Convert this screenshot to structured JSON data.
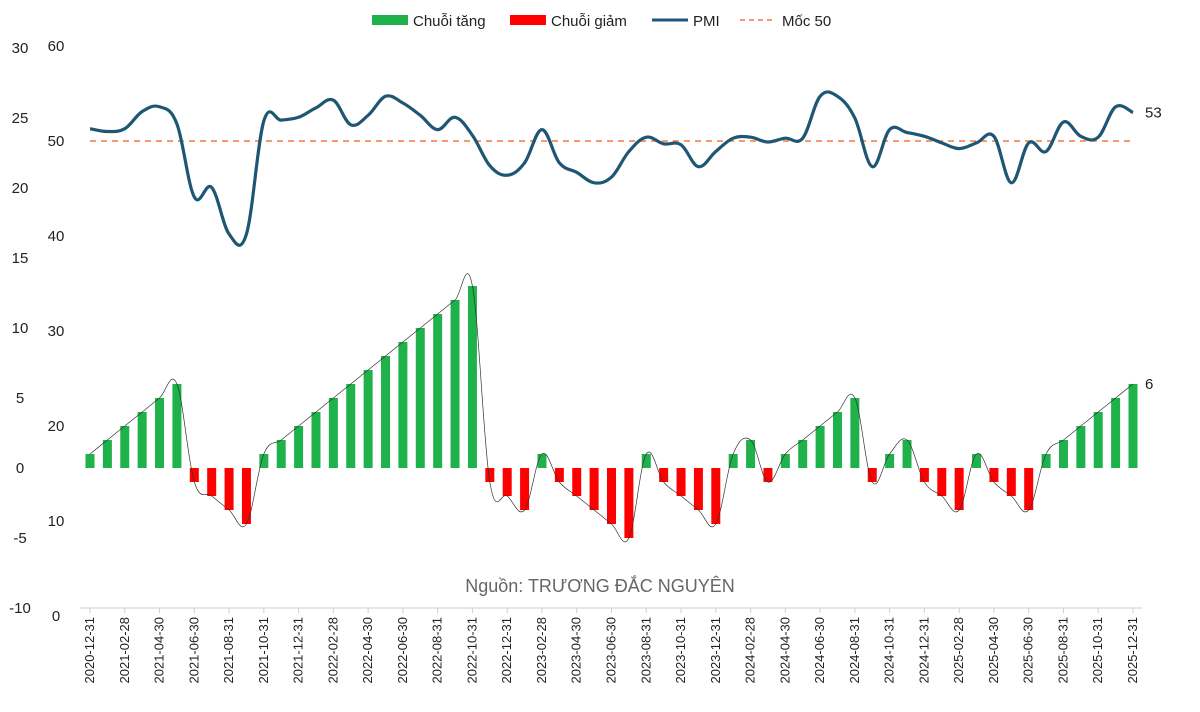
{
  "chart_data": {
    "type": "bar+line",
    "legend": [
      {
        "key": "up",
        "label": "Chuỗi tăng",
        "color": "#1fb24a",
        "kind": "bar"
      },
      {
        "key": "down",
        "label": "Chuỗi giảm",
        "color": "#ff0000",
        "kind": "bar"
      },
      {
        "key": "pmi",
        "label": "PMI",
        "color": "#1e5674",
        "kind": "line"
      },
      {
        "key": "ref",
        "label": "Mốc 50",
        "color": "#f07c3f",
        "kind": "dashed"
      }
    ],
    "source": "Nguồn: TRƯƠNG ĐẮC NGUYÊN",
    "bar_axis": {
      "ticks": [
        "30",
        "25",
        "20",
        "15",
        "10",
        "5",
        "0",
        "-5",
        "-10"
      ],
      "values": [
        30,
        25,
        20,
        15,
        10,
        5,
        0,
        -5,
        -10
      ],
      "ylim": [
        -10,
        30
      ]
    },
    "pmi_axis": {
      "ticks": [
        "60",
        "50",
        "40",
        "30",
        "20",
        "10",
        "0"
      ],
      "values": [
        60,
        50,
        40,
        30,
        20,
        10,
        0
      ],
      "ylim": [
        0,
        60
      ]
    },
    "x_tick_labels": [
      "2020-12-31",
      "2021-02-28",
      "2021-04-30",
      "2021-06-30",
      "2021-08-31",
      "2021-10-31",
      "2021-12-31",
      "2022-02-28",
      "2022-04-30",
      "2022-06-30",
      "2022-08-31",
      "2022-10-31",
      "2022-12-31",
      "2023-02-28",
      "2023-04-30",
      "2023-06-30",
      "2023-08-31",
      "2023-10-31",
      "2023-12-31",
      "2024-02-28",
      "2024-04-30",
      "2024-06-30",
      "2024-08-31",
      "2024-10-31",
      "2024-12-31",
      "2025-02-28",
      "2025-04-30",
      "2025-06-30",
      "2025-08-31",
      "2025-10-31",
      "2025-12-31"
    ],
    "streak": [
      1,
      2,
      3,
      4,
      5,
      6,
      -1,
      -2,
      -3,
      -4,
      1,
      2,
      3,
      4,
      5,
      6,
      7,
      8,
      9,
      10,
      11,
      12,
      13,
      -1,
      -2,
      -3,
      1,
      -1,
      -2,
      -3,
      -4,
      -5,
      1,
      -1,
      -2,
      -3,
      -4,
      1,
      2,
      -1,
      1,
      2,
      3,
      4,
      5,
      -1,
      1,
      2,
      -1,
      -2,
      -3,
      1,
      -1,
      -2,
      -3,
      1,
      2,
      3,
      4,
      5,
      6
    ],
    "pmi": [
      51.3,
      51.0,
      51.3,
      53.1,
      53.6,
      51.8,
      44.1,
      45.1,
      40.2,
      40.2,
      52.1,
      52.2,
      52.5,
      53.5,
      54.3,
      51.7,
      52.7,
      54.7,
      54.0,
      52.7,
      51.2,
      52.5,
      50.6,
      47.4,
      46.4,
      47.7,
      51.2,
      47.7,
      46.7,
      45.6,
      46.2,
      48.9,
      50.4,
      49.7,
      49.6,
      47.3,
      48.9,
      50.3,
      50.4,
      49.9,
      50.3,
      50.3,
      54.7,
      54.7,
      52.4,
      47.3,
      51.2,
      50.9,
      50.5,
      49.8,
      49.2,
      49.8,
      50.5,
      45.6,
      49.8,
      48.9,
      52.0,
      50.5,
      50.4,
      53.6,
      53.0
    ],
    "last_labels": {
      "pmi": "53",
      "streak": "6"
    }
  }
}
